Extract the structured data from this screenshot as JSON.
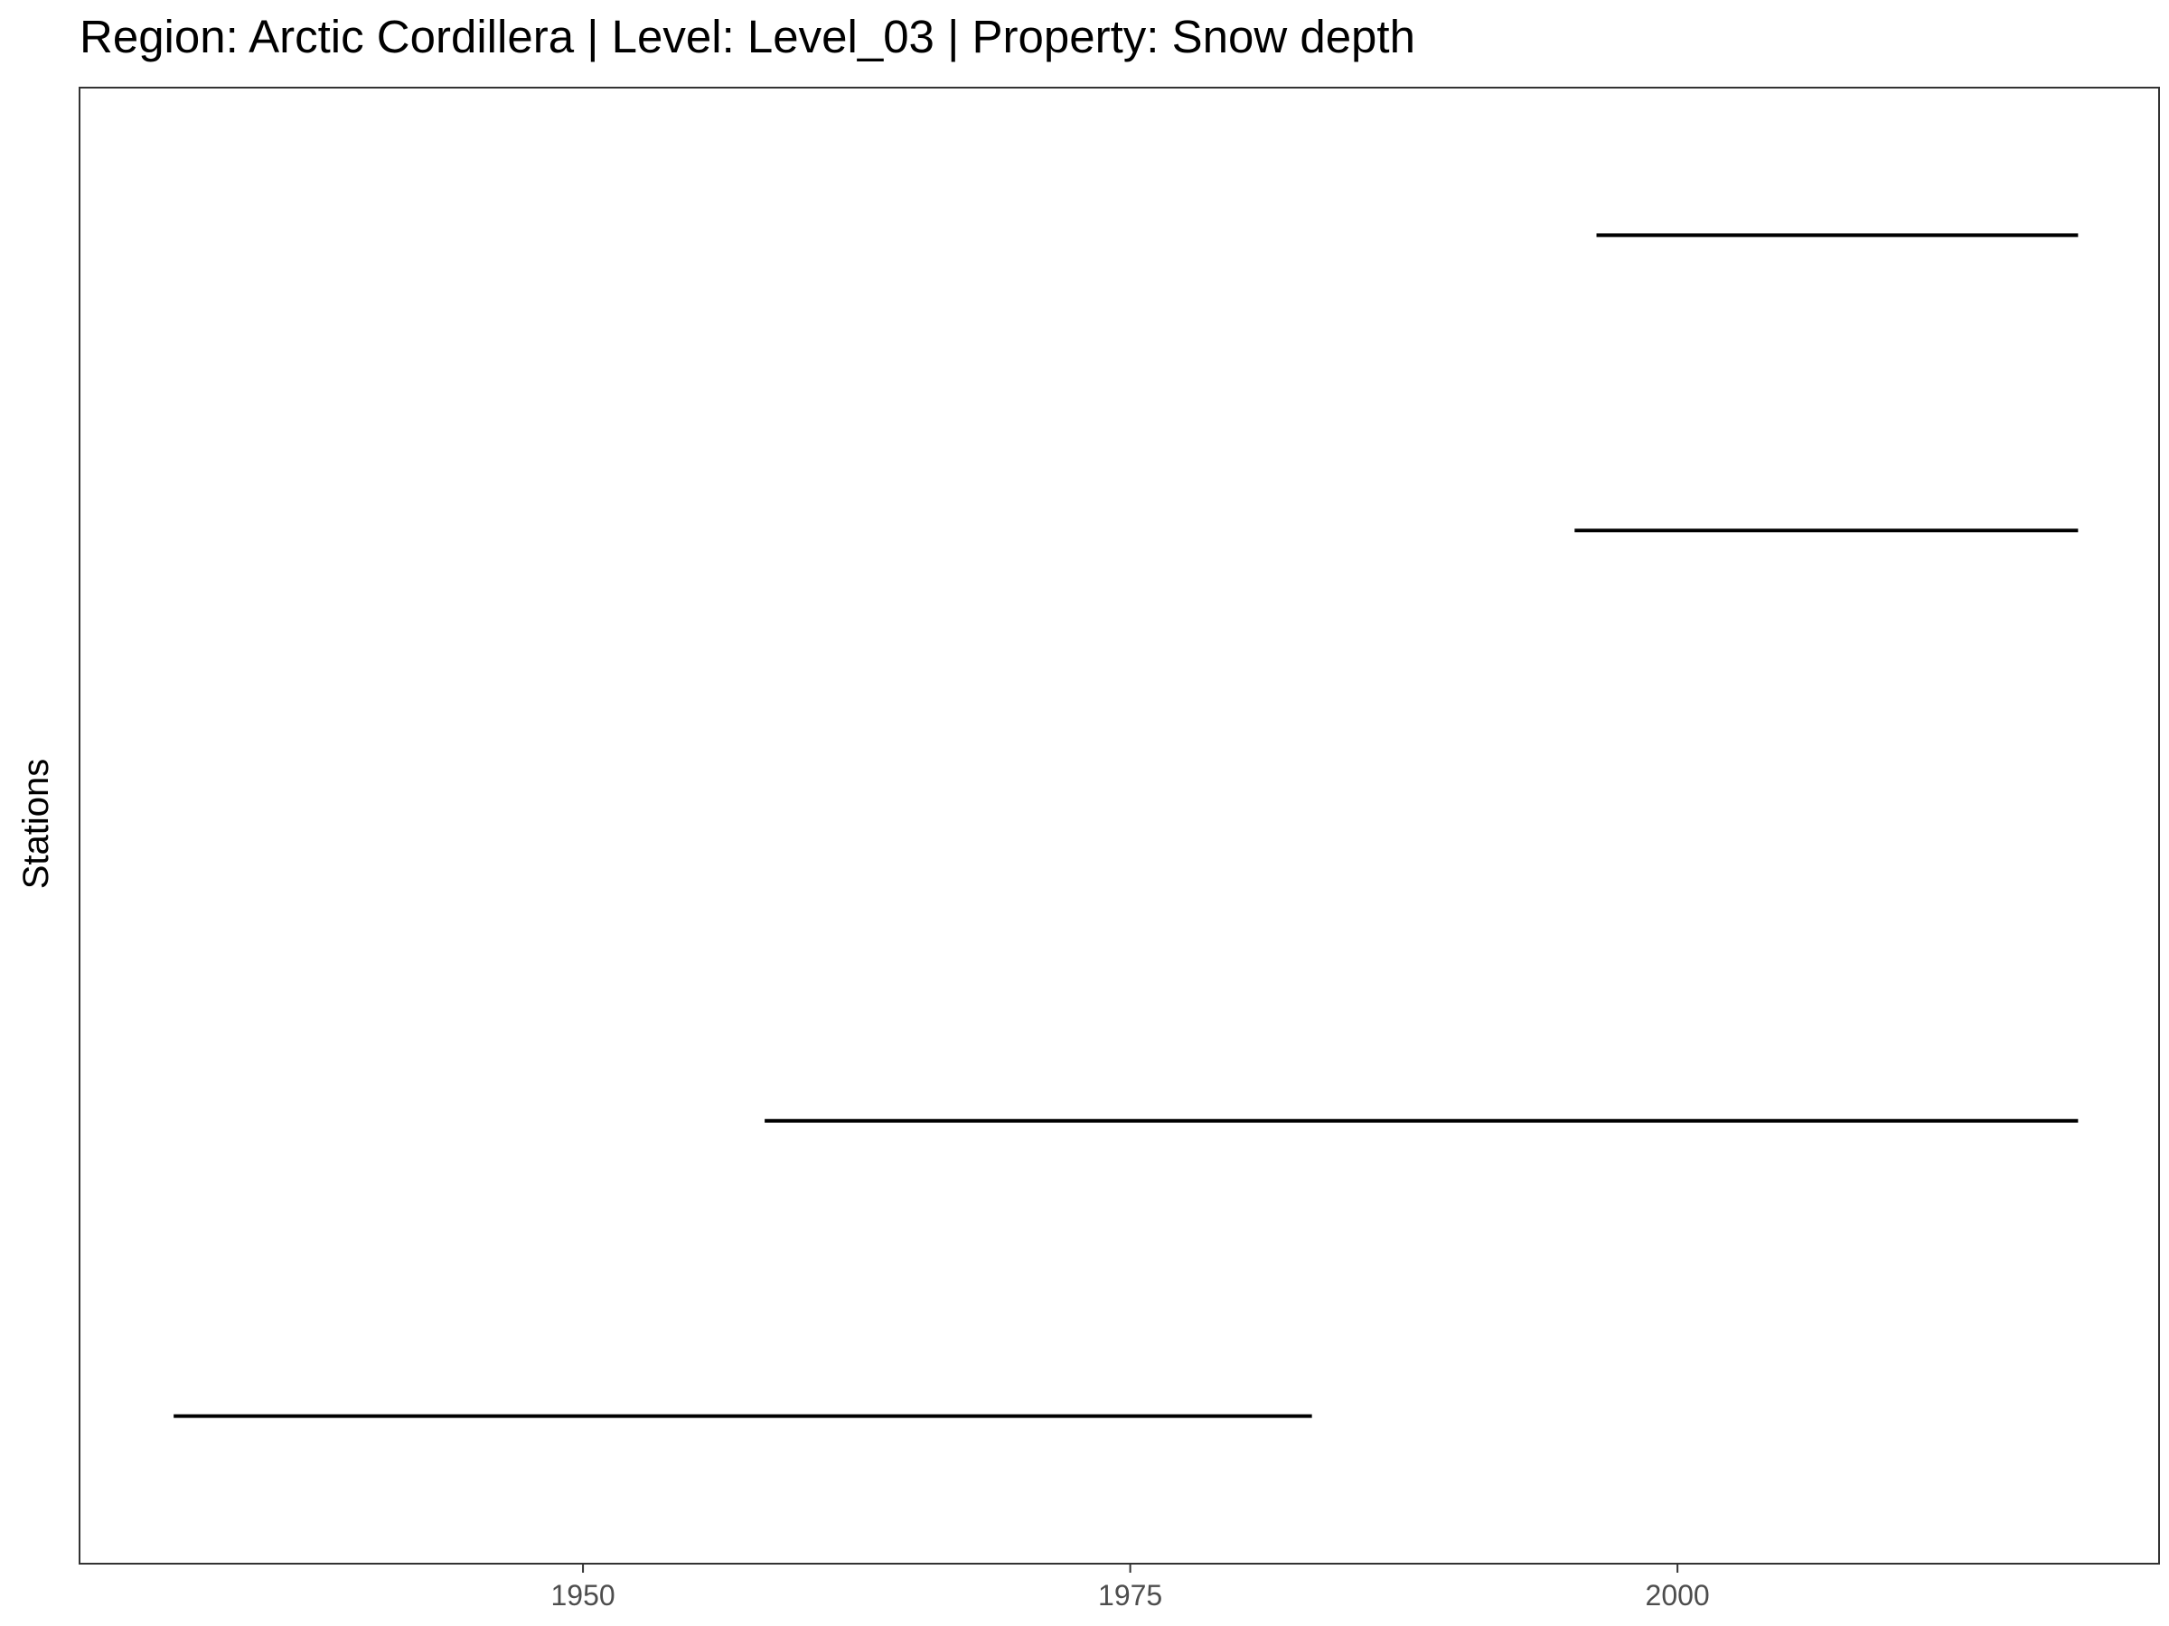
{
  "chart_data": {
    "type": "timeline",
    "title": "Region: Arctic Cordillera | Level: Level_03 | Property: Snow depth",
    "xlabel": "",
    "ylabel": "Stations",
    "x_ticks": [
      1950,
      1975,
      2000
    ],
    "xlim": [
      1927,
      2022
    ],
    "ylim": [
      0.5,
      5.5
    ],
    "grid": false,
    "legend": "none",
    "series": [
      {
        "row": 5,
        "start": 1996.3,
        "end": 2018.3
      },
      {
        "row": 4,
        "start": 1995.3,
        "end": 2018.3
      },
      {
        "row": 2,
        "start": 1958.3,
        "end": 2018.3
      },
      {
        "row": 1,
        "start": 1931.3,
        "end": 1983.3
      }
    ],
    "colors": {
      "segment": "#000000",
      "panel_border": "#333333",
      "background": "#ffffff"
    }
  }
}
